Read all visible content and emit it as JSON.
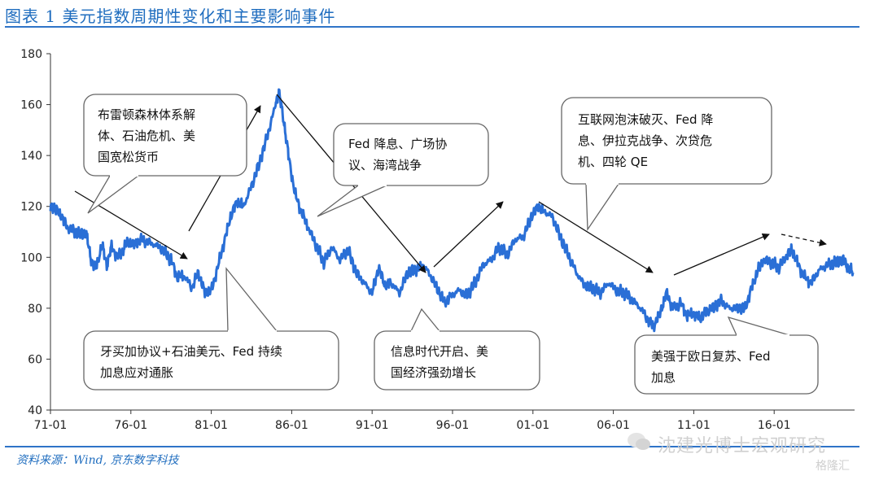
{
  "header": {
    "title": "图表 1 美元指数周期性变化和主要影响事件"
  },
  "footer": {
    "source": "资料来源：Wind, 京东数字科技"
  },
  "watermark": {
    "text": "沈建光博士宏观研究",
    "badge": "格隆汇"
  },
  "colors": {
    "accent": "#1f6dbf",
    "line": "#2a6fd6"
  },
  "chart_data": {
    "type": "line",
    "title": "",
    "xlabel": "",
    "ylabel": "",
    "ylim": [
      40,
      180
    ],
    "yticks": [
      40,
      60,
      80,
      100,
      120,
      140,
      160,
      180
    ],
    "xticks": [
      "71-01",
      "76-01",
      "81-01",
      "86-01",
      "91-01",
      "96-01",
      "01-01",
      "06-01",
      "11-01",
      "16-01"
    ],
    "grid": false,
    "series": [
      {
        "name": "",
        "x": [
          1971.0,
          1971.3,
          1971.7,
          1972.0,
          1972.5,
          1973.0,
          1973.2,
          1973.5,
          1973.8,
          1974.2,
          1974.5,
          1974.8,
          1975.2,
          1975.5,
          1975.8,
          1976.2,
          1976.6,
          1977.0,
          1977.5,
          1978.0,
          1978.5,
          1978.9,
          1979.3,
          1979.8,
          1980.2,
          1980.6,
          1981.0,
          1981.4,
          1981.8,
          1982.2,
          1982.6,
          1983.0,
          1983.5,
          1984.0,
          1984.5,
          1985.0,
          1985.2,
          1985.5,
          1985.8,
          1986.2,
          1986.6,
          1987.0,
          1987.5,
          1988.0,
          1988.5,
          1989.0,
          1989.5,
          1990.0,
          1990.5,
          1991.0,
          1991.4,
          1991.8,
          1992.2,
          1992.7,
          1993.2,
          1993.7,
          1994.2,
          1994.7,
          1995.2,
          1995.5,
          1995.9,
          1996.4,
          1996.9,
          1997.4,
          1997.9,
          1998.4,
          1998.9,
          1999.4,
          1999.9,
          2000.4,
          2000.9,
          2001.3,
          2001.7,
          2002.2,
          2002.7,
          2003.2,
          2003.7,
          2004.2,
          2004.7,
          2005.2,
          2005.7,
          2006.2,
          2006.7,
          2007.2,
          2007.7,
          2008.2,
          2008.5,
          2008.9,
          2009.3,
          2009.7,
          2010.2,
          2010.6,
          2011.0,
          2011.4,
          2011.8,
          2012.2,
          2012.7,
          2013.2,
          2013.7,
          2014.2,
          2014.6,
          2015.0,
          2015.3,
          2015.8,
          2016.3,
          2016.8,
          2017.1,
          2017.5,
          2017.9,
          2018.3,
          2018.8,
          2019.3,
          2019.8,
          2020.3,
          2020.6,
          2020.9
        ],
        "values": [
          120,
          119,
          116,
          112,
          110,
          109,
          110,
          100,
          95,
          105,
          97,
          104,
          100,
          103,
          106,
          105,
          107,
          106,
          105,
          103,
          99,
          92,
          93,
          88,
          94,
          86,
          87,
          96,
          106,
          116,
          122,
          120,
          128,
          137,
          148,
          160,
          165,
          154,
          140,
          125,
          118,
          112,
          105,
          98,
          104,
          99,
          103,
          94,
          90,
          86,
          96,
          89,
          90,
          86,
          94,
          95,
          97,
          92,
          86,
          82,
          85,
          87,
          85,
          90,
          97,
          99,
          104,
          101,
          107,
          108,
          116,
          120,
          118,
          116,
          108,
          101,
          94,
          89,
          88,
          86,
          90,
          87,
          86,
          83,
          80,
          75,
          73,
          78,
          86,
          80,
          82,
          77,
          78,
          76,
          79,
          80,
          83,
          80,
          80,
          80,
          88,
          95,
          99,
          98,
          96,
          101,
          103,
          97,
          92,
          90,
          95,
          97,
          98,
          99,
          96,
          94
        ]
      }
    ],
    "annotations": [
      {
        "lines": [
          "布雷顿森林体系解",
          "体、石油危机、美",
          "国宽松货币"
        ]
      },
      {
        "lines": [
          "Fed 降息、广场协",
          "议、海湾战争"
        ]
      },
      {
        "lines": [
          "互联网泡沫破灭、Fed 降",
          "息、伊拉克战争、次贷危",
          "机、四轮 QE"
        ]
      },
      {
        "lines": [
          "牙买加协议+石油美元、Fed 持续",
          "加息应对通胀"
        ]
      },
      {
        "lines": [
          "信息时代开启、美",
          "国经济强劲增长"
        ]
      },
      {
        "lines": [
          "美强于欧日复苏、Fed",
          "加息"
        ]
      }
    ]
  }
}
